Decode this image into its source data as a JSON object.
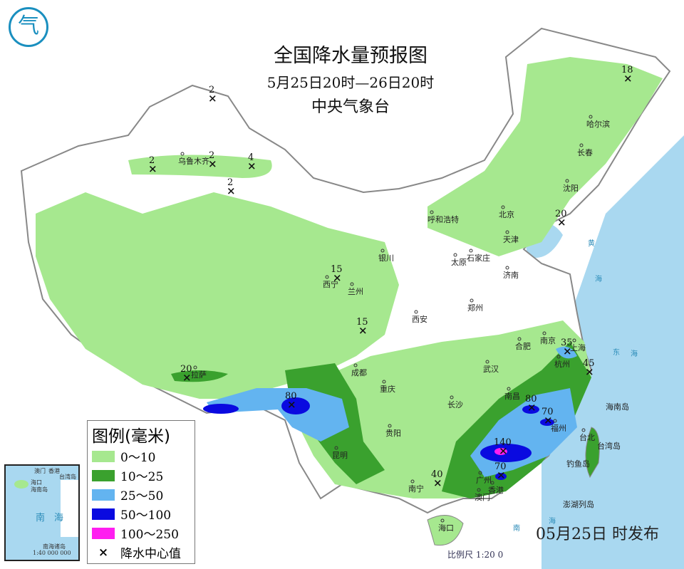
{
  "header": {
    "title": "全国降水量预报图",
    "period": "5月25日20时—26日20时",
    "issuer": "中央气象台",
    "logo_text": "气"
  },
  "colors": {
    "sea": "#a9d8f0",
    "land": "#ffffff",
    "c0_10": "#a6e88f",
    "c10_25": "#3aa12e",
    "c25_50": "#63b4f0",
    "c50_100": "#0a0ae0",
    "c100_250": "#ff1ef0",
    "border": "#888888"
  },
  "legend": {
    "title": "图例(毫米)",
    "items": [
      {
        "label": "0～10",
        "color": "#a6e88f"
      },
      {
        "label": "10～25",
        "color": "#3aa12e"
      },
      {
        "label": "25～50",
        "color": "#63b4f0"
      },
      {
        "label": "50～100",
        "color": "#0a0ae0"
      },
      {
        "label": "100～250",
        "color": "#ff1ef0"
      }
    ],
    "center_symbol": "×",
    "center_label": "降水中心值"
  },
  "cities": [
    "乌鲁木齐",
    "哈尔滨",
    "长春",
    "沈阳",
    "北京",
    "天津",
    "呼和浩特",
    "银川",
    "西宁",
    "兰州",
    "太原",
    "石家庄",
    "济南",
    "郑州",
    "西安",
    "成都",
    "重庆",
    "贵阳",
    "昆明",
    "南宁",
    "广州",
    "香港",
    "澳门",
    "海口",
    "长沙",
    "武汉",
    "南昌",
    "合肥",
    "南京",
    "上海",
    "杭州",
    "福州",
    "台北",
    "拉萨"
  ],
  "precip_centers": [
    "2",
    "2",
    "2",
    "4",
    "2",
    "18",
    "20",
    "15",
    "15",
    "20",
    "80",
    "35",
    "45",
    "80",
    "70",
    "140",
    "70",
    "40"
  ],
  "seas": [
    "黄",
    "海",
    "东",
    "海",
    "南",
    "海",
    "台湾岛",
    "海南岛",
    "钓鱼岛",
    "澎湖列岛",
    "东沙群岛"
  ],
  "inset": {
    "labels": [
      "澳门",
      "香港",
      "海口",
      "海南岛",
      "台湾岛",
      "南",
      "海",
      "南海诸岛"
    ],
    "scale": "1:40 000 000"
  },
  "footer": {
    "issued": "05月25日   时发布",
    "scale": "比例尺 1:20 0"
  }
}
